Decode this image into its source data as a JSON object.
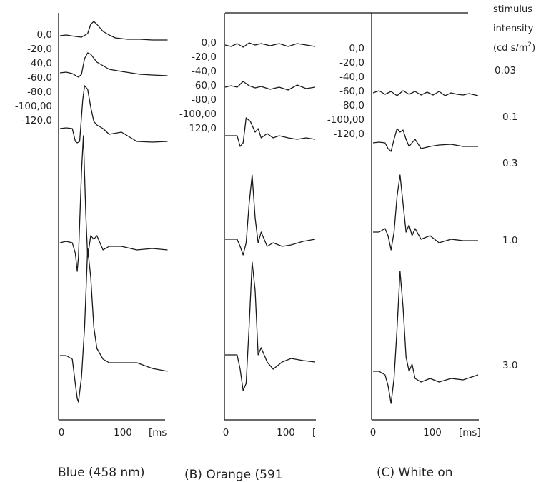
{
  "chart_data": [
    {
      "type": "line",
      "id": "A",
      "caption": "Blue (458 nm)",
      "ylabels": [
        "0,0",
        "-20,0",
        "-40,0",
        "-60,0",
        "-80,0",
        "-100,00",
        "-120,0"
      ],
      "xticks": [
        "0",
        "100",
        "[ms"
      ],
      "series": [
        {
          "label_ref": 0,
          "x": [
            0,
            10,
            25,
            35,
            45,
            50,
            55,
            60,
            70,
            80,
            90,
            110,
            130,
            150,
            175
          ],
          "y": [
            2,
            3,
            1,
            0,
            5,
            18,
            22,
            18,
            8,
            3,
            -1,
            -3,
            -3,
            -4,
            -4
          ]
        },
        {
          "label_ref": 1,
          "x": [
            0,
            10,
            20,
            30,
            35,
            40,
            45,
            50,
            60,
            70,
            80,
            100,
            130,
            150,
            175
          ],
          "y": [
            0,
            1,
            -1,
            -6,
            -2,
            20,
            28,
            26,
            15,
            10,
            5,
            2,
            -2,
            -3,
            -4
          ]
        },
        {
          "label_ref": 2,
          "x": [
            0,
            10,
            20,
            25,
            28,
            32,
            37,
            40,
            45,
            50,
            55,
            60,
            70,
            80,
            100,
            125,
            150,
            175
          ],
          "y": [
            0,
            1,
            0,
            -18,
            -20,
            -18,
            40,
            60,
            55,
            30,
            10,
            5,
            0,
            -8,
            -5,
            -18,
            -19,
            -18
          ]
        },
        {
          "label_ref": 3,
          "x": [
            0,
            10,
            20,
            25,
            28,
            30,
            35,
            38,
            42,
            45,
            50,
            55,
            60,
            70,
            80,
            100,
            125,
            150,
            175
          ],
          "y": [
            0,
            2,
            0,
            -15,
            -40,
            -20,
            100,
            150,
            40,
            -20,
            10,
            5,
            10,
            -10,
            -5,
            -5,
            -10,
            -8,
            -10
          ]
        },
        {
          "label_ref": 4,
          "x": [
            0,
            10,
            20,
            25,
            28,
            30,
            35,
            40,
            45,
            50,
            55,
            60,
            70,
            80,
            100,
            125,
            150,
            175
          ],
          "y": [
            0,
            0,
            -5,
            -40,
            -60,
            -65,
            -30,
            40,
            150,
            110,
            40,
            10,
            -5,
            -10,
            -10,
            -10,
            -18,
            -22
          ]
        }
      ]
    },
    {
      "type": "line",
      "id": "B",
      "caption": "(B) Orange (591",
      "ylabels": [
        "0,0",
        "-20,0",
        "-40,0",
        "-60,0",
        "-80,0",
        "-100,00",
        "-120,0"
      ],
      "xticks": [
        "0",
        "100",
        "["
      ],
      "series": [
        {
          "label_ref": 0,
          "x": [
            0,
            10,
            20,
            30,
            40,
            50,
            60,
            75,
            90,
            105,
            120,
            135,
            150
          ],
          "y": [
            0,
            -2,
            2,
            -3,
            3,
            0,
            2,
            -1,
            2,
            -2,
            2,
            0,
            -2
          ]
        },
        {
          "label_ref": 1,
          "x": [
            0,
            10,
            20,
            30,
            40,
            50,
            60,
            75,
            90,
            105,
            120,
            135,
            150
          ],
          "y": [
            0,
            2,
            0,
            8,
            2,
            -1,
            1,
            -3,
            0,
            -4,
            3,
            -2,
            0
          ]
        },
        {
          "label_ref": 2,
          "x": [
            0,
            10,
            20,
            25,
            30,
            35,
            42,
            50,
            55,
            60,
            70,
            80,
            90,
            105,
            120,
            135,
            150
          ],
          "y": [
            0,
            0,
            0,
            -15,
            -10,
            25,
            20,
            5,
            10,
            -3,
            3,
            -3,
            0,
            -3,
            -5,
            -3,
            -5
          ]
        },
        {
          "label_ref": 3,
          "x": [
            0,
            10,
            20,
            25,
            30,
            35,
            40,
            45,
            50,
            55,
            60,
            70,
            80,
            95,
            110,
            130,
            150
          ],
          "y": [
            0,
            0,
            0,
            -10,
            -22,
            -5,
            50,
            90,
            30,
            -5,
            10,
            -10,
            -5,
            -10,
            -8,
            -3,
            0
          ]
        },
        {
          "label_ref": 4,
          "x": [
            0,
            10,
            20,
            25,
            30,
            35,
            40,
            45,
            50,
            55,
            60,
            70,
            80,
            95,
            110,
            130,
            150
          ],
          "y": [
            0,
            0,
            0,
            -20,
            -50,
            -40,
            40,
            130,
            90,
            0,
            10,
            -10,
            -20,
            -10,
            -5,
            -8,
            -10
          ]
        }
      ]
    },
    {
      "type": "line",
      "id": "C",
      "caption": "(C) White on",
      "ylabels": [
        "0,0",
        "-20,0",
        "-40,0",
        "-60,0",
        "-80,0",
        "-100,00",
        "-120,0"
      ],
      "xticks": [
        "0",
        "100",
        "[ms]"
      ],
      "series": [
        {
          "label_ref": 0,
          "x": [
            0,
            10,
            20,
            30,
            40,
            50,
            60,
            70,
            80,
            90,
            100,
            110,
            120,
            130,
            140,
            150,
            160,
            175
          ],
          "y": [
            0,
            3,
            -2,
            2,
            -4,
            3,
            -2,
            2,
            -3,
            1,
            -3,
            2,
            -4,
            0,
            -2,
            -3,
            -1,
            -4
          ]
        },
        {
          "label_ref": 1,
          "x": [
            0,
            10,
            20,
            25,
            30,
            35,
            40,
            45,
            50,
            55,
            60,
            70,
            80,
            95,
            110,
            130,
            150,
            175
          ],
          "y": [
            0,
            1,
            0,
            -8,
            -12,
            5,
            20,
            15,
            18,
            5,
            -5,
            5,
            -8,
            -5,
            -3,
            -2,
            -5,
            -5
          ]
        },
        {
          "label_ref": 2,
          "x": [
            0,
            10,
            20,
            25,
            30,
            35,
            40,
            45,
            50,
            55,
            60,
            65,
            70,
            80,
            95,
            110,
            130,
            150,
            175
          ],
          "y": [
            0,
            0,
            5,
            -5,
            -25,
            0,
            50,
            80,
            40,
            0,
            10,
            -5,
            5,
            -10,
            -5,
            -15,
            -10,
            -12,
            -12
          ]
        },
        {
          "label_ref": 3,
          "x": [
            0,
            10,
            20,
            25,
            30,
            35,
            40,
            45,
            50,
            55,
            60,
            65,
            70,
            80,
            95,
            110,
            130,
            150,
            175
          ],
          "y": [
            0,
            0,
            -5,
            -20,
            -45,
            -10,
            60,
            140,
            90,
            20,
            0,
            10,
            -10,
            -15,
            -10,
            -15,
            -10,
            -12,
            -5
          ]
        }
      ]
    }
  ],
  "intensity": {
    "header": [
      "stimulus",
      "intensity",
      "(cd s/m",
      "2",
      ")"
    ],
    "labels": [
      "0.03",
      "0.1",
      "0.3",
      "1.0",
      "3.0"
    ]
  },
  "colors": {
    "ink": "#1a1a1a",
    "background": "#ffffff"
  }
}
